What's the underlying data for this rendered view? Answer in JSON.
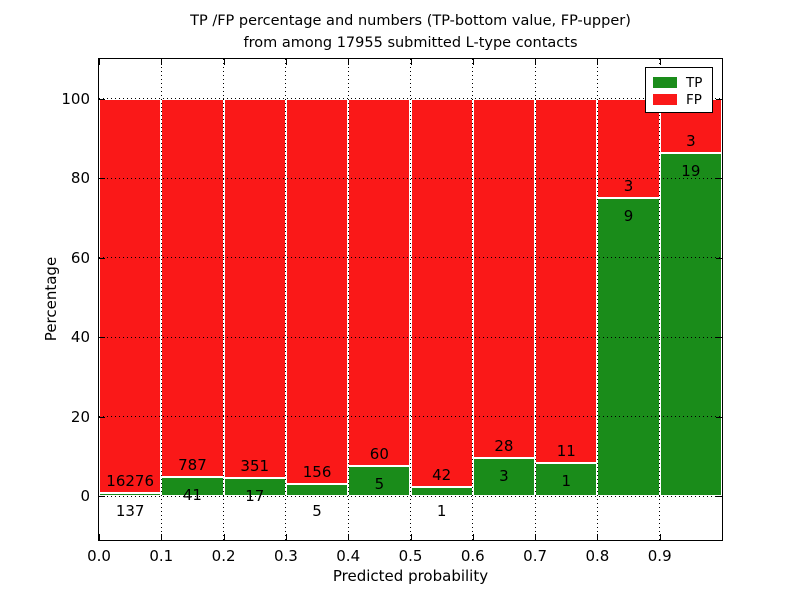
{
  "title": {
    "line1": "TP /FP percentage and numbers (TP-bottom value, FP-upper)",
    "line2": "from among 17955 submitted L-type contacts"
  },
  "axes": {
    "xlabel": "Predicted probability",
    "ylabel": "Percentage",
    "x_ticks": [
      "0.0",
      "0.1",
      "0.2",
      "0.3",
      "0.4",
      "0.5",
      "0.6",
      "0.7",
      "0.8",
      "0.9"
    ],
    "y_ticks": [
      "0",
      "20",
      "40",
      "60",
      "80",
      "100"
    ],
    "y_tick_values": [
      0,
      20,
      40,
      60,
      80,
      100
    ],
    "xlim": [
      0.0,
      1.0
    ],
    "ylim": [
      -11,
      110
    ]
  },
  "legend": {
    "items": [
      {
        "label": "TP",
        "color": "#1a8c1a"
      },
      {
        "label": "FP",
        "color": "#fa1818"
      }
    ],
    "position": "upper right"
  },
  "colors": {
    "tp_green": "#1a8c1a",
    "fp_red": "#fa1818",
    "bar_edge": "#ffffff",
    "grid": "#000000",
    "text": "#000000"
  },
  "chart_data": {
    "type": "bar",
    "stacked": true,
    "title": "TP /FP percentage and numbers (TP-bottom value, FP-upper) from among 17955 submitted L-type contacts",
    "xlabel": "Predicted probability",
    "ylabel": "Percentage",
    "grid": "dotted",
    "legend_position": "upper right",
    "xlim": [
      0.0,
      1.0
    ],
    "ylim": [
      -11,
      110
    ],
    "bins": [
      "0.0-0.1",
      "0.1-0.2",
      "0.2-0.3",
      "0.3-0.4",
      "0.4-0.5",
      "0.5-0.6",
      "0.6-0.7",
      "0.7-0.8",
      "0.8-0.9",
      "0.9-1.0"
    ],
    "series": [
      {
        "name": "TP",
        "color": "#1a8c1a",
        "counts": [
          137,
          41,
          17,
          5,
          5,
          1,
          3,
          1,
          9,
          19
        ],
        "percent": [
          0.83,
          4.95,
          4.62,
          3.11,
          7.69,
          2.33,
          9.68,
          8.33,
          75.0,
          86.36
        ]
      },
      {
        "name": "FP",
        "color": "#fa1818",
        "counts": [
          16276,
          787,
          351,
          156,
          60,
          42,
          28,
          11,
          3,
          3
        ],
        "percent": [
          99.17,
          95.05,
          95.38,
          96.89,
          92.31,
          97.67,
          90.32,
          91.67,
          25.0,
          13.64
        ]
      }
    ]
  }
}
